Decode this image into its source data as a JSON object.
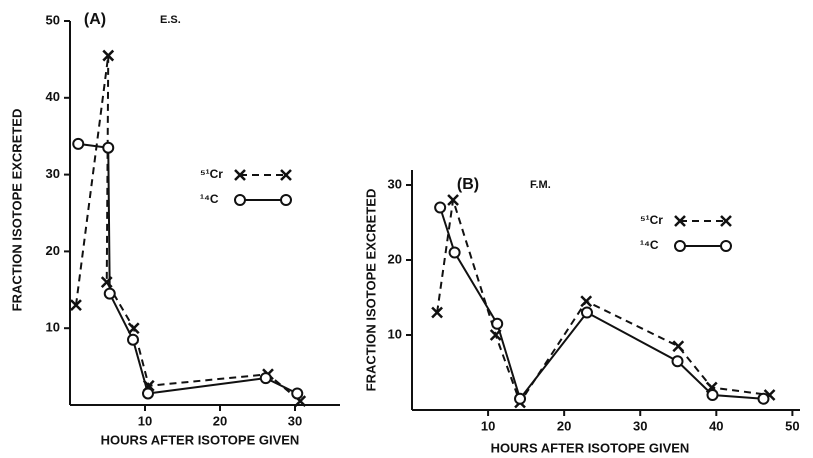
{
  "chart_data": [
    {
      "type": "line",
      "title": "(A)",
      "subtitle": "E.S.",
      "x_label": "HOURS AFTER ISOTOPE GIVEN",
      "y_label": "FRACTION ISOTOPE EXCRETED",
      "xlim": [
        0,
        36
      ],
      "ylim": [
        0,
        50
      ],
      "xticks": [
        10,
        20,
        30
      ],
      "yticks": [
        10,
        20,
        30,
        40,
        50
      ],
      "series": [
        {
          "name": "⁵¹Cr",
          "color": "#111111",
          "x": [
            0.8,
            5.1,
            4.9,
            8.5,
            10.5,
            26.4,
            30.7
          ],
          "values": [
            13,
            45.5,
            16,
            10,
            2.5,
            4,
            0.5
          ]
        },
        {
          "name": "¹⁴C",
          "color": "#111111",
          "x": [
            1.1,
            5.1,
            5.3,
            8.4,
            10.4,
            26.1,
            30.3
          ],
          "values": [
            34,
            33.5,
            14.5,
            8.5,
            1.5,
            3.5,
            1.5
          ]
        }
      ]
    },
    {
      "type": "line",
      "title": "(B)",
      "subtitle": "F.M.",
      "x_label": "HOURS AFTER ISOTOPE GIVEN",
      "y_label": "FRACTION ISOTOPE EXCRETED",
      "xlim": [
        0,
        51
      ],
      "ylim": [
        0,
        32
      ],
      "xticks": [
        10,
        20,
        30,
        40,
        50
      ],
      "yticks": [
        10,
        20,
        30
      ],
      "series": [
        {
          "name": "⁵¹Cr",
          "color": "#111111",
          "x": [
            3.3,
            5.4,
            11,
            14.2,
            22.9,
            35,
            39.4,
            47
          ],
          "values": [
            13,
            28,
            10,
            1,
            14.5,
            8.5,
            3,
            2
          ]
        },
        {
          "name": "¹⁴C",
          "color": "#111111",
          "x": [
            3.7,
            5.6,
            11.2,
            14.2,
            23,
            34.9,
            39.5,
            46.2
          ],
          "values": [
            27,
            21,
            11.5,
            1.5,
            13,
            6.5,
            2,
            1.5
          ]
        }
      ]
    }
  ]
}
